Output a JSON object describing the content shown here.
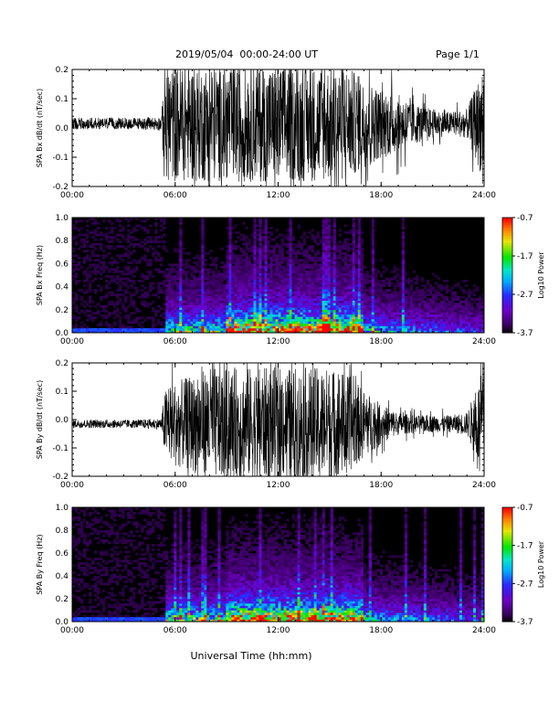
{
  "header": {
    "title": "2019/05/04  00:00-24:00 UT",
    "page": "Page 1/1"
  },
  "xlabel": "Universal Time (hh:mm)",
  "chart_data": [
    {
      "type": "line",
      "ylabel": "SPA Bx dB/dt (nT/sec)",
      "xlim": [
        0,
        24
      ],
      "ylim": [
        -0.2,
        0.2
      ],
      "x_ticks": [
        "00:00",
        "06:00",
        "12:00",
        "18:00",
        "24:00"
      ],
      "y_ticks": [
        "0.2",
        "0.1",
        "0.0",
        "-0.1",
        "-0.2"
      ],
      "envelope_x_hours": [
        0,
        2,
        4,
        5.2,
        5.4,
        6,
        7,
        8,
        9,
        10,
        11,
        12,
        13,
        14,
        15,
        16,
        17,
        18,
        19,
        20,
        21,
        22,
        23,
        24
      ],
      "envelope_amplitude": [
        0.02,
        0.02,
        0.02,
        0.025,
        0.2,
        0.2,
        0.2,
        0.2,
        0.2,
        0.2,
        0.2,
        0.2,
        0.2,
        0.2,
        0.2,
        0.2,
        0.15,
        0.12,
        0.1,
        0.07,
        0.05,
        0.04,
        0.05,
        0.2
      ],
      "offset": 0.015
    },
    {
      "type": "heatmap",
      "ylabel": "SPA Bx Freq (Hz)",
      "xlim": [
        0,
        24
      ],
      "ylim": [
        0,
        1.0
      ],
      "x_ticks": [
        "00:00",
        "06:00",
        "12:00",
        "18:00",
        "24:00"
      ],
      "y_ticks": [
        "1.0",
        "0.8",
        "0.6",
        "0.4",
        "0.2",
        "0.0"
      ],
      "colorbar": {
        "label": "Log10 Power",
        "ticks": [
          "-0.7",
          "-1.7",
          "-2.7",
          "-3.7"
        ],
        "range": [
          -3.7,
          -0.7
        ]
      }
    },
    {
      "type": "line",
      "ylabel": "SPA By dB/dt (nT/sec)",
      "xlim": [
        0,
        24
      ],
      "ylim": [
        -0.2,
        0.2
      ],
      "x_ticks": [
        "00:00",
        "06:00",
        "12:00",
        "18:00",
        "24:00"
      ],
      "y_ticks": [
        "0.2",
        "0.1",
        "0.0",
        "-0.1",
        "-0.2"
      ],
      "envelope_x_hours": [
        0,
        2,
        4,
        5.2,
        5.4,
        6,
        7,
        8,
        9,
        10,
        11,
        12,
        13,
        14,
        15,
        16,
        17,
        18,
        19,
        20,
        21,
        22,
        23,
        24
      ],
      "envelope_amplitude": [
        0.015,
        0.015,
        0.015,
        0.02,
        0.12,
        0.15,
        0.17,
        0.2,
        0.2,
        0.2,
        0.2,
        0.2,
        0.2,
        0.2,
        0.2,
        0.18,
        0.12,
        0.07,
        0.04,
        0.03,
        0.03,
        0.03,
        0.04,
        0.2
      ],
      "offset": -0.015
    },
    {
      "type": "heatmap",
      "ylabel": "SPA By Freq (Hz)",
      "xlim": [
        0,
        24
      ],
      "ylim": [
        0,
        1.0
      ],
      "x_ticks": [
        "00:00",
        "06:00",
        "12:00",
        "18:00",
        "24:00"
      ],
      "y_ticks": [
        "1.0",
        "0.8",
        "0.6",
        "0.4",
        "0.2",
        "0.0"
      ],
      "colorbar": {
        "label": "Log10 Power",
        "ticks": [
          "-0.7",
          "-1.7",
          "-2.7",
          "-3.7"
        ],
        "range": [
          -3.7,
          -0.7
        ]
      }
    }
  ]
}
